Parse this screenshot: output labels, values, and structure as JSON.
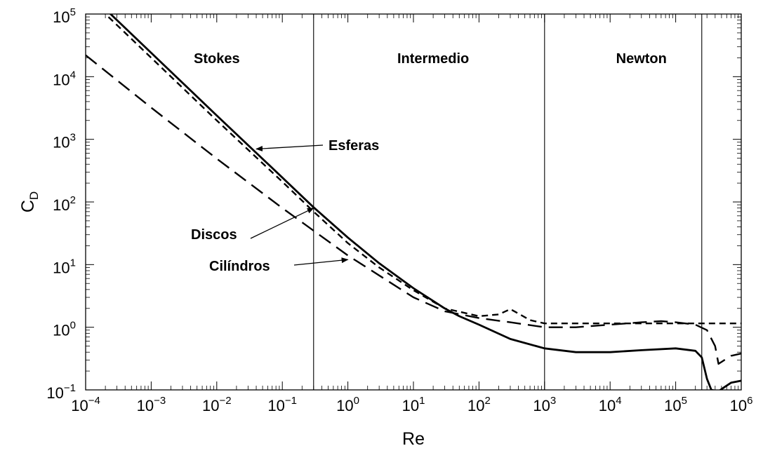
{
  "chart_data": {
    "type": "line",
    "title": "",
    "xlabel": "Re",
    "ylabel": {
      "main": "C",
      "sub": "D"
    },
    "xscale": "log",
    "yscale": "log",
    "xlim": [
      0.0001,
      1000000
    ],
    "ylim": [
      0.1,
      100000
    ],
    "grid": false,
    "x_ticks": [
      {
        "value": 0.0001,
        "base": "10",
        "exp": "−4"
      },
      {
        "value": 0.001,
        "base": "10",
        "exp": "−3"
      },
      {
        "value": 0.01,
        "base": "10",
        "exp": "−2"
      },
      {
        "value": 0.1,
        "base": "10",
        "exp": "−1"
      },
      {
        "value": 1,
        "base": "10",
        "exp": "0"
      },
      {
        "value": 10,
        "base": "10",
        "exp": "1"
      },
      {
        "value": 100,
        "base": "10",
        "exp": "2"
      },
      {
        "value": 1000,
        "base": "10",
        "exp": "3"
      },
      {
        "value": 10000,
        "base": "10",
        "exp": "4"
      },
      {
        "value": 100000,
        "base": "10",
        "exp": "5"
      },
      {
        "value": 1000000,
        "base": "10",
        "exp": "6"
      }
    ],
    "y_ticks": [
      {
        "value": 0.1,
        "base": "10",
        "exp": "−1"
      },
      {
        "value": 1,
        "base": "10",
        "exp": "0"
      },
      {
        "value": 10,
        "base": "10",
        "exp": "1"
      },
      {
        "value": 100,
        "base": "10",
        "exp": "2"
      },
      {
        "value": 1000,
        "base": "10",
        "exp": "3"
      },
      {
        "value": 10000,
        "base": "10",
        "exp": "4"
      },
      {
        "value": 100000,
        "base": "10",
        "exp": "5"
      }
    ],
    "region_boundaries": [
      0.3,
      1000,
      250000
    ],
    "regions": [
      {
        "label": "Stokes",
        "x": 0.01
      },
      {
        "label": "Intermedio",
        "x": 20
      },
      {
        "label": "Newton",
        "x": 30000
      }
    ],
    "series": [
      {
        "name": "Esferas",
        "style": "solid",
        "points": [
          [
            0.0001,
            240000
          ],
          [
            0.001,
            24000
          ],
          [
            0.01,
            2400
          ],
          [
            0.1,
            245
          ],
          [
            0.3,
            82
          ],
          [
            1,
            27
          ],
          [
            3,
            10.5
          ],
          [
            10,
            4.2
          ],
          [
            30,
            2.0
          ],
          [
            50,
            1.5
          ],
          [
            100,
            1.1
          ],
          [
            300,
            0.65
          ],
          [
            1000,
            0.46
          ],
          [
            3000,
            0.4
          ],
          [
            10000,
            0.4
          ],
          [
            30000,
            0.43
          ],
          [
            100000,
            0.46
          ],
          [
            200000,
            0.42
          ],
          [
            250000,
            0.33
          ],
          [
            300000,
            0.15
          ],
          [
            350000,
            0.1
          ],
          [
            450000,
            0.095
          ],
          [
            550000,
            0.11
          ],
          [
            700000,
            0.13
          ],
          [
            1000000,
            0.14
          ]
        ]
      },
      {
        "name": "Discos",
        "style": "short-dash",
        "points": [
          [
            0.0001,
            200000
          ],
          [
            0.001,
            20000
          ],
          [
            0.01,
            2000
          ],
          [
            0.1,
            210
          ],
          [
            0.3,
            70
          ],
          [
            1,
            22
          ],
          [
            3,
            9
          ],
          [
            10,
            3.9
          ],
          [
            30,
            2.0
          ],
          [
            100,
            1.5
          ],
          [
            200,
            1.6
          ],
          [
            300,
            1.95
          ],
          [
            400,
            1.65
          ],
          [
            600,
            1.3
          ],
          [
            1000,
            1.15
          ],
          [
            10000,
            1.15
          ],
          [
            100000,
            1.15
          ],
          [
            1000000,
            1.15
          ]
        ]
      },
      {
        "name": "Cilíndros",
        "style": "long-dash",
        "points": [
          [
            0.0001,
            22000
          ],
          [
            0.001,
            3200
          ],
          [
            0.01,
            490
          ],
          [
            0.1,
            80
          ],
          [
            1,
            14
          ],
          [
            10,
            3.0
          ],
          [
            30,
            1.8
          ],
          [
            100,
            1.4
          ],
          [
            300,
            1.2
          ],
          [
            1000,
            1.0
          ],
          [
            3000,
            1.0
          ],
          [
            10000,
            1.1
          ],
          [
            30000,
            1.2
          ],
          [
            60000,
            1.25
          ],
          [
            100000,
            1.2
          ],
          [
            200000,
            1.1
          ],
          [
            300000,
            0.9
          ],
          [
            400000,
            0.5
          ],
          [
            450000,
            0.26
          ],
          [
            500000,
            0.28
          ],
          [
            700000,
            0.35
          ],
          [
            1000000,
            0.38
          ]
        ]
      }
    ],
    "annotations": [
      {
        "label": "Esferas",
        "arrow_to": [
          0.04,
          700
        ]
      },
      {
        "label": "Discos",
        "arrow_to": [
          0.3,
          80
        ]
      },
      {
        "label": "Cilíndros",
        "arrow_to": [
          1,
          12
        ]
      }
    ]
  }
}
